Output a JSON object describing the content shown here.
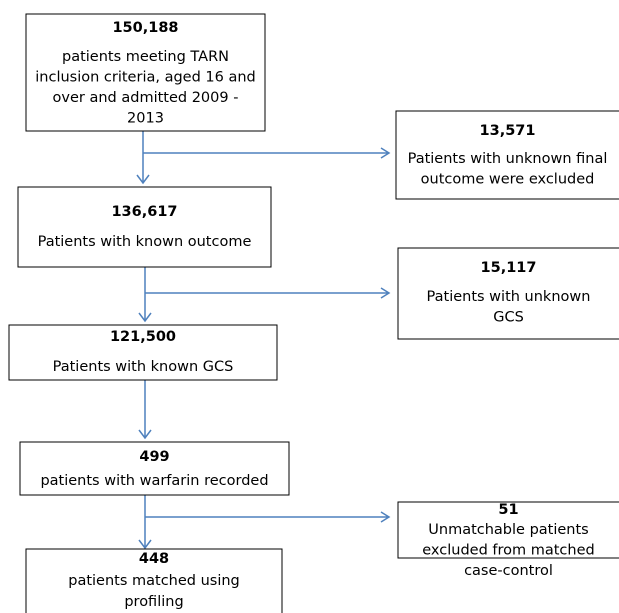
{
  "nodes": [
    {
      "count": "150,188",
      "lines": [
        "patients meeting TARN",
        "inclusion criteria, aged 16 and",
        "over and admitted 2009 -",
        "2013"
      ]
    },
    {
      "count": "13,571",
      "lines": [
        "Patients with unknown final",
        "outcome were excluded"
      ]
    },
    {
      "count": "136,617",
      "lines": [
        "Patients with known outcome"
      ]
    },
    {
      "count": "15,117",
      "lines": [
        "Patients with unknown",
        "GCS"
      ]
    },
    {
      "count": "121,500",
      "lines": [
        "Patients with known GCS"
      ]
    },
    {
      "count": "499",
      "lines": [
        "patients with warfarin recorded"
      ]
    },
    {
      "count": "51",
      "lines": [
        "Unmatchable patients",
        "excluded from matched",
        "case-control"
      ]
    },
    {
      "count": "448",
      "lines": [
        "patients matched using",
        "profiling"
      ]
    }
  ]
}
